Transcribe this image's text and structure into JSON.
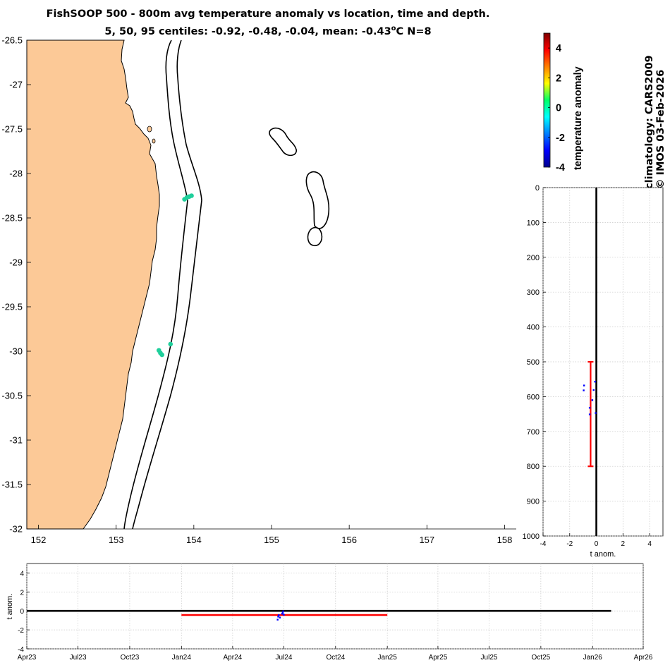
{
  "title": {
    "line1": "FishSOOP 500 - 800m avg temperature anomaly vs location, time and depth.",
    "line2_prefix": "5, 50, 95 centiles: -0.92, -0.48, -0.04, mean: -0.43",
    "line2_sup": "o",
    "line2_suffix": "C N=8"
  },
  "side_text": {
    "climatology": "climatology: CARS2009",
    "credit": "© IMOS 03-Feb-2026"
  },
  "colors": {
    "land": "#fcc997",
    "range_bar": "#ff0000",
    "samples": "#0000ff",
    "track_points": "#1fcf9b",
    "zero_line": "#000000"
  },
  "chart_data": [
    {
      "type": "scatter",
      "name": "map",
      "xlim": [
        151.85,
        158.15
      ],
      "ylim": [
        -32,
        -26.5
      ],
      "x_ticks": [
        152,
        153,
        154,
        155,
        156,
        157,
        158
      ],
      "y_ticks": [
        -26.5,
        -27,
        -27.5,
        -28,
        -28.5,
        -29,
        -29.5,
        -30,
        -30.5,
        -31,
        -31.5,
        -32
      ],
      "points": [
        {
          "lon": 153.88,
          "lat": -28.29,
          "anom": -0.9
        },
        {
          "lon": 153.91,
          "lat": -28.27,
          "anom": -0.6
        },
        {
          "lon": 153.94,
          "lat": -28.26,
          "anom": -0.4
        },
        {
          "lon": 153.97,
          "lat": -28.25,
          "anom": -0.2
        },
        {
          "lon": 153.55,
          "lat": -29.99,
          "anom": -0.5
        },
        {
          "lon": 153.57,
          "lat": -30.02,
          "anom": -0.7
        },
        {
          "lon": 153.59,
          "lat": -30.04,
          "anom": -0.3
        },
        {
          "lon": 153.7,
          "lat": -29.92,
          "anom": -0.1
        }
      ]
    },
    {
      "type": "colorbar",
      "name": "colorbar",
      "label": "temperature anomaly",
      "range": [
        -4,
        5
      ],
      "ticks": [
        4,
        2,
        0,
        -2,
        -4
      ]
    },
    {
      "type": "scatter",
      "name": "depth-profile",
      "xlabel": "t anom.",
      "xlim": [
        -4,
        5
      ],
      "ylim": [
        0,
        1000
      ],
      "y_reversed": true,
      "x_ticks": [
        -4,
        -2,
        0,
        2,
        4
      ],
      "y_ticks": [
        0,
        100,
        200,
        300,
        400,
        500,
        600,
        700,
        800,
        900,
        1000
      ],
      "range_bar": {
        "x": -0.43,
        "y_from": 500,
        "y_to": 800
      },
      "points": [
        {
          "x": -0.92,
          "y": 568
        },
        {
          "x": -0.95,
          "y": 582
        },
        {
          "x": -0.1,
          "y": 557
        },
        {
          "x": -0.2,
          "y": 581
        },
        {
          "x": -0.5,
          "y": 632
        },
        {
          "x": -0.5,
          "y": 651
        },
        {
          "x": -0.05,
          "y": 647
        },
        {
          "x": -0.3,
          "y": 610
        }
      ]
    },
    {
      "type": "scatter",
      "name": "time-series",
      "ylabel": "t anom.",
      "xlim": [
        "2023-04-01",
        "2026-04-01"
      ],
      "ylim": [
        -4,
        5
      ],
      "x_ticks": [
        {
          "date": "2023-04-01",
          "label": "Apr23"
        },
        {
          "date": "2023-07-01",
          "label": "Jul23"
        },
        {
          "date": "2023-10-01",
          "label": "Oct23"
        },
        {
          "date": "2024-01-01",
          "label": "Jan24"
        },
        {
          "date": "2024-04-01",
          "label": "Apr24"
        },
        {
          "date": "2024-07-01",
          "label": "Jul24"
        },
        {
          "date": "2024-10-01",
          "label": "Oct24"
        },
        {
          "date": "2025-01-01",
          "label": "Jan25"
        },
        {
          "date": "2025-04-01",
          "label": "Apr25"
        },
        {
          "date": "2025-07-01",
          "label": "Jul25"
        },
        {
          "date": "2025-10-01",
          "label": "Oct25"
        },
        {
          "date": "2026-01-01",
          "label": "Jan26"
        },
        {
          "date": "2026-04-01",
          "label": "Apr26"
        }
      ],
      "y_ticks": [
        4,
        2,
        0,
        -2,
        -4
      ],
      "zero_line": {
        "from": "2023-04-01",
        "to": "2026-02-03"
      },
      "range_bar": {
        "y": -0.43,
        "from": "2024-01-01",
        "to": "2025-01-01"
      },
      "points": [
        {
          "date": "2024-06-20",
          "y": -0.92
        },
        {
          "date": "2024-06-21",
          "y": -0.6
        },
        {
          "date": "2024-06-22",
          "y": -0.45
        },
        {
          "date": "2024-06-24",
          "y": -0.7
        },
        {
          "date": "2024-06-28",
          "y": -0.3
        },
        {
          "date": "2024-06-29",
          "y": -0.2
        },
        {
          "date": "2024-06-30",
          "y": -0.04
        },
        {
          "date": "2024-07-01",
          "y": -0.4
        }
      ]
    }
  ]
}
